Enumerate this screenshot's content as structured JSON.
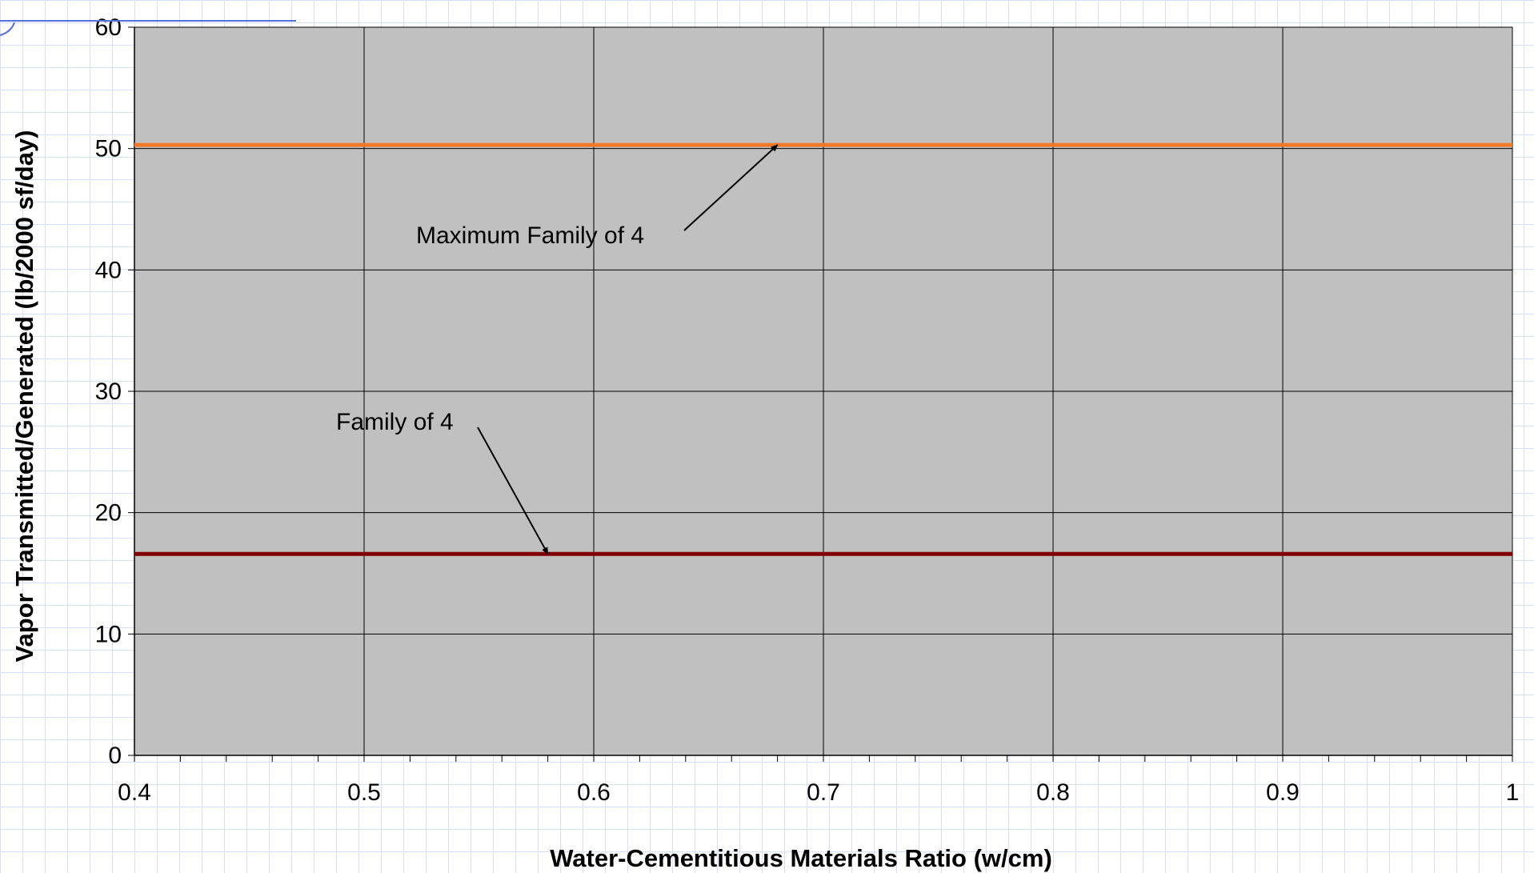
{
  "chart_data": {
    "type": "line",
    "title": "",
    "xlabel": "Water-Cementitious Materials Ratio (w/cm)",
    "ylabel": "Vapor Transmitted/Generated (lb/2000 sf/day)",
    "xlim": [
      0.4,
      1
    ],
    "ylim": [
      0,
      60
    ],
    "x_ticks": [
      0.4,
      0.5,
      0.6,
      0.7,
      0.8,
      0.9,
      1
    ],
    "x_tick_labels": [
      "0.4",
      "0.5",
      "0.6",
      "0.7",
      "0.8",
      "0.9",
      "1"
    ],
    "y_ticks": [
      0,
      10,
      20,
      30,
      40,
      50,
      60
    ],
    "y_tick_labels": [
      "0",
      "10",
      "20",
      "30",
      "40",
      "50",
      "60"
    ],
    "grid": true,
    "legend": "none",
    "plot_background": "#c0c0c0",
    "series": [
      {
        "x": [
          0.4,
          1
        ],
        "y": [
          50.3,
          50.3
        ],
        "color": "#f07a2a"
      },
      {
        "x": [
          0.4,
          1
        ],
        "y": [
          16.6,
          16.6
        ],
        "color": "#800000"
      }
    ],
    "annotations": [
      {
        "text": "Maximum Family of 4",
        "target_x": 0.68,
        "target_y": 50.3
      },
      {
        "text": "Family of 4",
        "target_x": 0.58,
        "target_y": 16.6
      }
    ]
  }
}
